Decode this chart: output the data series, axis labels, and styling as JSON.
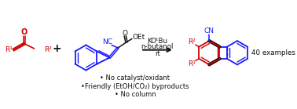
{
  "bg_color": "#ffffff",
  "red": "#cc0000",
  "blue": "#1a1aff",
  "black": "#111111",
  "bullet_texts": [
    "• No catalyst/oxidant",
    "•Friendly (EtOH/CO₂) byproducts",
    "• No column"
  ],
  "reaction_conditions": [
    "KOᵗBu",
    "n-butanol",
    "rt"
  ],
  "examples_text": "40 examples",
  "figsize": [
    3.78,
    1.39
  ],
  "dpi": 100
}
